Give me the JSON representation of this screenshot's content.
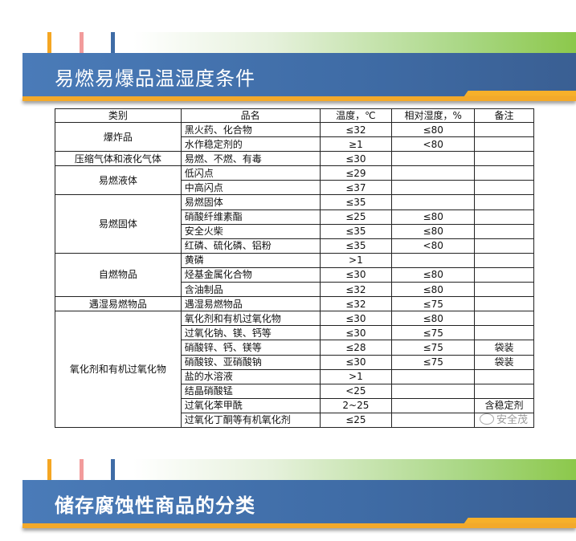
{
  "banner1": {
    "title": "易燃易爆品温湿度条件"
  },
  "banner2": {
    "title": "储存腐蚀性商品的分类"
  },
  "colors": {
    "band": "#3f6ca6",
    "orange": "#f3a92a",
    "green": "#8cc84b",
    "stripe_orange": "#f5a623",
    "stripe_pink": "#f29b9b",
    "stripe_blue": "#3f6ca6"
  },
  "table": {
    "headers": [
      "类别",
      "品名",
      "温度，℃",
      "相对湿度，%",
      "备注"
    ],
    "groups": [
      {
        "category": "爆炸品",
        "rows": [
          [
            "黑火药、化合物",
            "≤32",
            "≤80",
            ""
          ],
          [
            "水作稳定剂的",
            "≥1",
            "<80",
            ""
          ]
        ]
      },
      {
        "category": "压缩气体和液化气体",
        "rows": [
          [
            "易燃、不燃、有毒",
            "≤30",
            "",
            ""
          ]
        ]
      },
      {
        "category": "易燃液体",
        "rows": [
          [
            "低闪点",
            "≤29",
            "",
            ""
          ],
          [
            "中高闪点",
            "≤37",
            "",
            ""
          ]
        ]
      },
      {
        "category": "易燃固体",
        "rows": [
          [
            "易燃固体",
            "≤35",
            "",
            ""
          ],
          [
            "硝酸纤维素酯",
            "≤25",
            "≤80",
            ""
          ],
          [
            "安全火柴",
            "≤35",
            "≤80",
            ""
          ],
          [
            "红磷、硫化磷、铝粉",
            "≤35",
            "<80",
            ""
          ]
        ]
      },
      {
        "category": "自燃物品",
        "rows": [
          [
            "黄磷",
            ">1",
            "",
            ""
          ],
          [
            "烃基金属化合物",
            "≤30",
            "≤80",
            ""
          ],
          [
            "含油制品",
            "≤32",
            "≤80",
            ""
          ]
        ]
      },
      {
        "category": "遇湿易燃物品",
        "rows": [
          [
            "遇湿易燃物品",
            "≤32",
            "≤75",
            ""
          ]
        ]
      },
      {
        "category": "氧化剂和有机过氧化物",
        "rows": [
          [
            "氧化剂和有机过氧化物",
            "≤30",
            "≤80",
            ""
          ],
          [
            "过氧化钠、镁、钙等",
            "≤30",
            "≤75",
            ""
          ],
          [
            "硝酸锌、钙、镁等",
            "≤28",
            "≤75",
            "袋装"
          ],
          [
            "硝酸铵、亚硝酸钠",
            "≤30",
            "≤75",
            "袋装"
          ],
          [
            "盐的水溶液",
            ">1",
            "",
            ""
          ],
          [
            "结晶硝酸锰",
            "<25",
            "",
            ""
          ],
          [
            "过氧化苯甲酰",
            "2~25",
            "",
            "含稳定剂"
          ],
          [
            "过氧化丁酮等有机氧化剂",
            "≤25",
            "",
            ""
          ]
        ]
      }
    ]
  },
  "watermark": {
    "text": "安全茂"
  }
}
